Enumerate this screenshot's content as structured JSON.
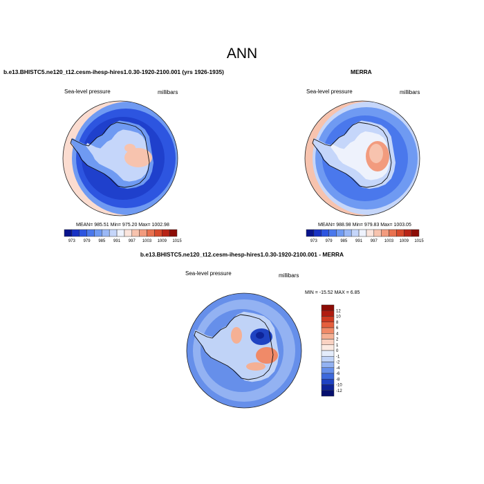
{
  "figure": {
    "title": "ANN"
  },
  "panels": [
    {
      "case": "b.e13.BHISTC5.ne120_t12.cesm-ihesp-hires1.0.30-1920-2100.001 (yrs 1926-1935)",
      "variable": "Sea-level pressure",
      "units": "millibars",
      "stats": "MEAN= 985.51  Min= 975.20  Max= 1002.98"
    },
    {
      "case": "MERRA",
      "variable": "Sea-level pressure",
      "units": "millibars",
      "stats": "MEAN= 988.98  Min= 979.83  Max= 1003.05"
    },
    {
      "case": "b.e13.BHISTC5.ne120_t12.cesm-ihesp-hires1.0.30-1920-2100.001 - MERRA",
      "variable": "Sea-level pressure",
      "units": "millibars",
      "stats": "MIN = -15.52 MAX =  6.85"
    }
  ],
  "colorbars": {
    "absolute": {
      "ticks": [
        "973",
        "979",
        "985",
        "991",
        "997",
        "1003",
        "1009",
        "1015"
      ],
      "colors": [
        "#08138c",
        "#1832c4",
        "#2d55e0",
        "#4a78ec",
        "#6f9af2",
        "#9ab8f6",
        "#c5d6fa",
        "#eef2fc",
        "#fae4dc",
        "#f7c3ae",
        "#f29b7e",
        "#e8714f",
        "#d74a2c",
        "#b82417",
        "#8c0c06"
      ]
    },
    "difference": {
      "ticks": [
        "12",
        "10",
        "8",
        "6",
        "4",
        "2",
        "1",
        "0",
        "-1",
        "-2",
        "-4",
        "-6",
        "-8",
        "-10",
        "-12"
      ],
      "colors": [
        "#8c0c06",
        "#b01c10",
        "#cf3a21",
        "#e55f3d",
        "#f08a68",
        "#f5b094",
        "#f9d2c2",
        "#fbeae2",
        "#e4ecfb",
        "#c0d3f7",
        "#93b2f2",
        "#668fea",
        "#3d69dc",
        "#1f43c2",
        "#0e2498",
        "#060f6e"
      ]
    }
  }
}
